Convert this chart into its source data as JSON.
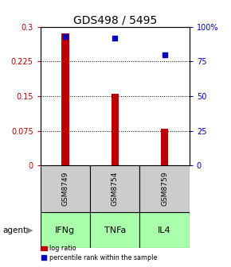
{
  "title": "GDS498 / 5495",
  "samples": [
    "GSM8749",
    "GSM8754",
    "GSM8759"
  ],
  "agents": [
    "IFNg",
    "TNFa",
    "IL4"
  ],
  "log_ratios": [
    0.285,
    0.155,
    0.08
  ],
  "percentile_ranks": [
    93,
    92,
    80
  ],
  "ylim_left": [
    0,
    0.3
  ],
  "ylim_right": [
    0,
    100
  ],
  "yticks_left": [
    0,
    0.075,
    0.15,
    0.225,
    0.3
  ],
  "yticks_right": [
    0,
    25,
    50,
    75,
    100
  ],
  "ytick_labels_left": [
    "0",
    "0.075",
    "0.15",
    "0.225",
    "0.3"
  ],
  "ytick_labels_right": [
    "0",
    "25",
    "50",
    "75",
    "100%"
  ],
  "bar_color": "#bb0000",
  "dot_color": "#0000bb",
  "sample_bg_color": "#cccccc",
  "agent_bg_color": "#aaffaa",
  "agent_label": "agent",
  "legend_bar_label": "log ratio",
  "legend_dot_label": "percentile rank within the sample",
  "title_fontsize": 10,
  "tick_fontsize": 7,
  "label_fontsize": 8,
  "bar_width": 0.15,
  "dot_size": 5
}
